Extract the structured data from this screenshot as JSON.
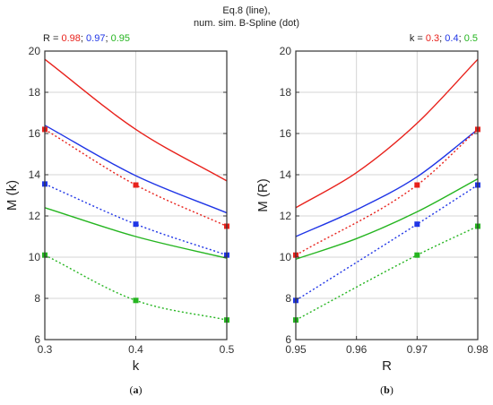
{
  "header": {
    "line1": "Eq.8 (line),",
    "line2": "num. sim. B-Spline (dot)"
  },
  "colors": {
    "red": "#e8211b",
    "blue": "#1f35e6",
    "green": "#25b520",
    "axis": "#333333",
    "grid": "#d4d4d4"
  },
  "chart_data": [
    {
      "type": "line",
      "panel": "(a)",
      "xlabel": "k",
      "ylabel": "M (k)",
      "xlim": [
        0.3,
        0.5
      ],
      "ylim": [
        6,
        20
      ],
      "xticks": [
        "0.3",
        "0.4",
        "0.5"
      ],
      "yticks": [
        "6",
        "8",
        "10",
        "12",
        "14",
        "16",
        "18",
        "20"
      ],
      "grid": true,
      "legend": {
        "prefix": "R = ",
        "entries": [
          {
            "text": "0.98",
            "color": "#e8211b"
          },
          {
            "text": "; ",
            "color": "#222222"
          },
          {
            "text": "0.97",
            "color": "#1f35e6"
          },
          {
            "text": "; ",
            "color": "#222222"
          },
          {
            "text": "0.95",
            "color": "#25b520"
          }
        ]
      },
      "lines": [
        {
          "color": "#e8211b",
          "x": [
            0.3,
            0.4,
            0.5
          ],
          "y": [
            19.6,
            16.2,
            13.7
          ]
        },
        {
          "color": "#1f35e6",
          "x": [
            0.3,
            0.4,
            0.5
          ],
          "y": [
            16.4,
            13.95,
            12.15
          ]
        },
        {
          "color": "#25b520",
          "x": [
            0.3,
            0.4,
            0.5
          ],
          "y": [
            12.4,
            11.0,
            9.95
          ]
        }
      ],
      "dots": [
        {
          "color": "#e8211b",
          "x": [
            0.3,
            0.4,
            0.5
          ],
          "y": [
            16.2,
            13.5,
            11.5
          ]
        },
        {
          "color": "#1f35e6",
          "x": [
            0.3,
            0.4,
            0.5
          ],
          "y": [
            13.55,
            11.6,
            10.1
          ]
        },
        {
          "color": "#25b520",
          "x": [
            0.3,
            0.4,
            0.5
          ],
          "y": [
            10.1,
            7.9,
            6.95
          ]
        }
      ]
    },
    {
      "type": "line",
      "panel": "(b)",
      "xlabel": "R",
      "ylabel": "M (R)",
      "xlim": [
        0.95,
        0.98
      ],
      "ylim": [
        6,
        20
      ],
      "xticks": [
        "0.95",
        "0.96",
        "0.97",
        "0.98"
      ],
      "yticks": [
        "6",
        "8",
        "10",
        "12",
        "14",
        "16",
        "18",
        "20"
      ],
      "grid": true,
      "legend": {
        "prefix": "k = ",
        "entries": [
          {
            "text": "0.3",
            "color": "#e8211b"
          },
          {
            "text": "; ",
            "color": "#222222"
          },
          {
            "text": "0.4",
            "color": "#1f35e6"
          },
          {
            "text": "; ",
            "color": "#222222"
          },
          {
            "text": "0.5",
            "color": "#25b520"
          }
        ]
      },
      "lines": [
        {
          "color": "#e8211b",
          "x": [
            0.95,
            0.96,
            0.97,
            0.98
          ],
          "y": [
            12.4,
            14.1,
            16.5,
            19.6
          ]
        },
        {
          "color": "#1f35e6",
          "x": [
            0.95,
            0.96,
            0.97,
            0.98
          ],
          "y": [
            11.0,
            12.3,
            13.9,
            16.2
          ]
        },
        {
          "color": "#25b520",
          "x": [
            0.95,
            0.96,
            0.97,
            0.98
          ],
          "y": [
            9.9,
            10.9,
            12.2,
            13.8
          ]
        }
      ],
      "dots": [
        {
          "color": "#e8211b",
          "x": [
            0.95,
            0.97,
            0.98
          ],
          "y": [
            10.1,
            13.5,
            16.2
          ]
        },
        {
          "color": "#1f35e6",
          "x": [
            0.95,
            0.97,
            0.98
          ],
          "y": [
            7.9,
            11.6,
            13.5
          ]
        },
        {
          "color": "#25b520",
          "x": [
            0.95,
            0.97,
            0.98
          ],
          "y": [
            6.95,
            10.1,
            11.5
          ]
        }
      ]
    }
  ]
}
